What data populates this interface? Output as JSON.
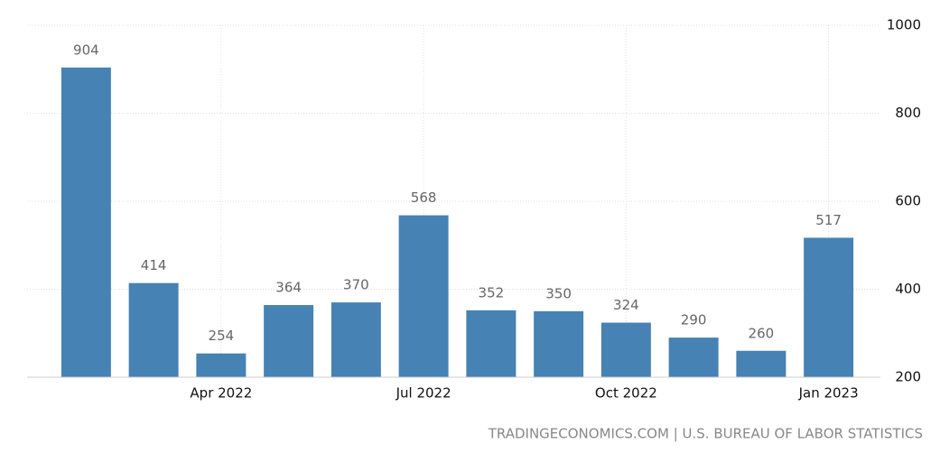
{
  "chart_data": {
    "type": "bar",
    "categories": [
      null,
      null,
      "Apr 2022",
      null,
      null,
      "Jul 2022",
      null,
      null,
      "Oct 2022",
      null,
      null,
      "Jan 2023"
    ],
    "values": [
      904,
      414,
      254,
      364,
      370,
      568,
      352,
      350,
      324,
      290,
      260,
      517
    ],
    "color": "#4682b4",
    "ylim": [
      200,
      1000
    ],
    "yticks": [
      200,
      400,
      600,
      800,
      1000
    ],
    "grid": true,
    "y_axis_side": "right",
    "source": "TRADINGECONOMICS.COM | U.S. BUREAU OF LABOR STATISTICS"
  }
}
